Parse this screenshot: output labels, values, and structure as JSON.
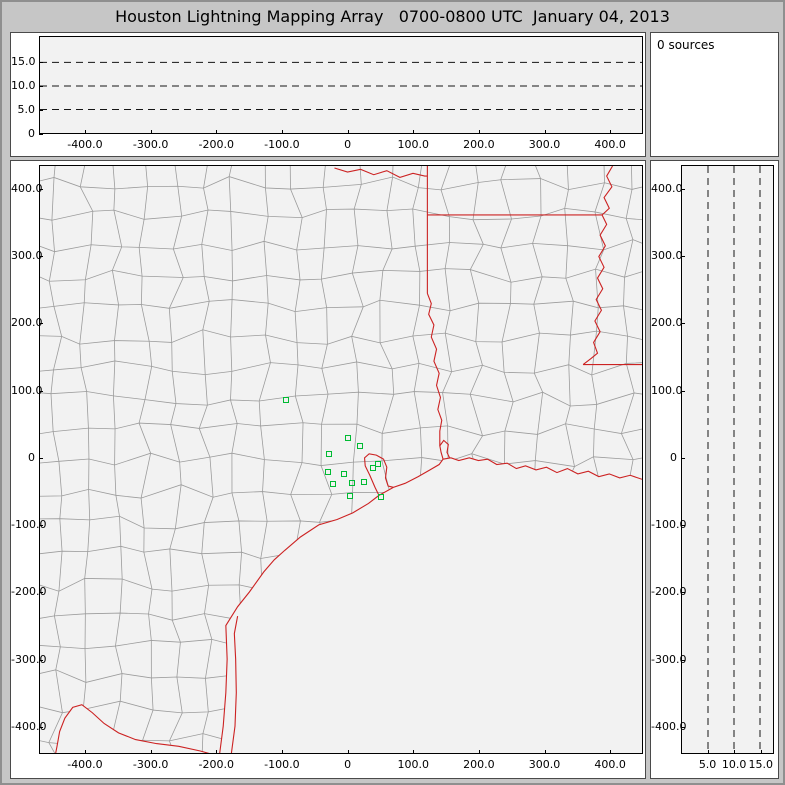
{
  "title": "Houston Lightning Mapping Array   0700-0800 UTC  January 04, 2013",
  "sources_panel": {
    "label": "0 sources"
  },
  "colors": {
    "window_bg": "#c6c6c6",
    "panel_bg": "#ffffff",
    "plot_bg": "#f2f2f2",
    "county_line": "#9c9c9c",
    "state_line": "#cc2222",
    "station": "#00bb33",
    "grid_dash": "#151515",
    "text": "#000000"
  },
  "chart_data": [
    {
      "type": "scatter",
      "name": "height-strip",
      "title": "",
      "xlabel": "",
      "ylabel": "",
      "xlim": [
        -470,
        450
      ],
      "ylim": [
        0,
        20.4
      ],
      "x_ticks": [
        -400,
        -300,
        -200,
        -100,
        0,
        100,
        200,
        300,
        400
      ],
      "x_tick_labels": [
        "-400.0",
        "-300.0",
        "-200.0",
        "-100.0",
        "0",
        "100.0",
        "200.0",
        "300.0",
        "400.0"
      ],
      "y_ticks": [
        0,
        5,
        10,
        15
      ],
      "y_tick_labels": [
        "0",
        "5.0",
        "10.0",
        "15.0"
      ],
      "grid_dashed_y": [
        5,
        10,
        15
      ],
      "points": []
    },
    {
      "type": "scatter",
      "name": "plan-view-map",
      "title": "",
      "xlabel": "",
      "ylabel": "",
      "xlim": [
        -470,
        450
      ],
      "ylim": [
        -440,
        435
      ],
      "x_ticks": [
        -400,
        -300,
        -200,
        -100,
        0,
        100,
        200,
        300,
        400
      ],
      "x_tick_labels": [
        "-400.0",
        "-300.0",
        "-200.0",
        "-100.0",
        "0",
        "100.0",
        "200.0",
        "300.0",
        "400.0"
      ],
      "y_ticks": [
        400,
        300,
        200,
        100,
        0,
        -100,
        -200,
        -300,
        -400
      ],
      "y_tick_labels": [
        "400.0",
        "300.0",
        "200.0",
        "100.0",
        "0",
        "-100.0",
        "-200.0",
        "-300.0",
        "-400.0"
      ],
      "points": [],
      "stations_km": [
        [
          -94,
          86
        ],
        [
          1,
          30
        ],
        [
          -28,
          6
        ],
        [
          19,
          18
        ],
        [
          -30,
          -21
        ],
        [
          -5,
          -24
        ],
        [
          46,
          -9
        ],
        [
          39,
          -15
        ],
        [
          -22,
          -39
        ],
        [
          7,
          -37
        ],
        [
          25,
          -36
        ],
        [
          4,
          -57
        ],
        [
          51,
          -58
        ]
      ]
    },
    {
      "type": "scatter",
      "name": "height-cross-section",
      "title": "",
      "xlabel": "",
      "ylabel": "",
      "xlim": [
        0,
        17.5
      ],
      "ylim": [
        -440,
        435
      ],
      "x_ticks": [
        5,
        10,
        15
      ],
      "x_tick_labels": [
        "5.0",
        "10.0",
        "15.0"
      ],
      "y_ticks": [
        400,
        300,
        200,
        100,
        0,
        -100,
        -200,
        -300,
        -400
      ],
      "y_tick_labels": [
        "400.0",
        "300.0",
        "200.0",
        "100.0",
        "0",
        "-100.0",
        "-200.0",
        "-300.0",
        "-400.0"
      ],
      "grid_dashed_x": [
        5,
        10,
        15
      ],
      "points": []
    }
  ]
}
